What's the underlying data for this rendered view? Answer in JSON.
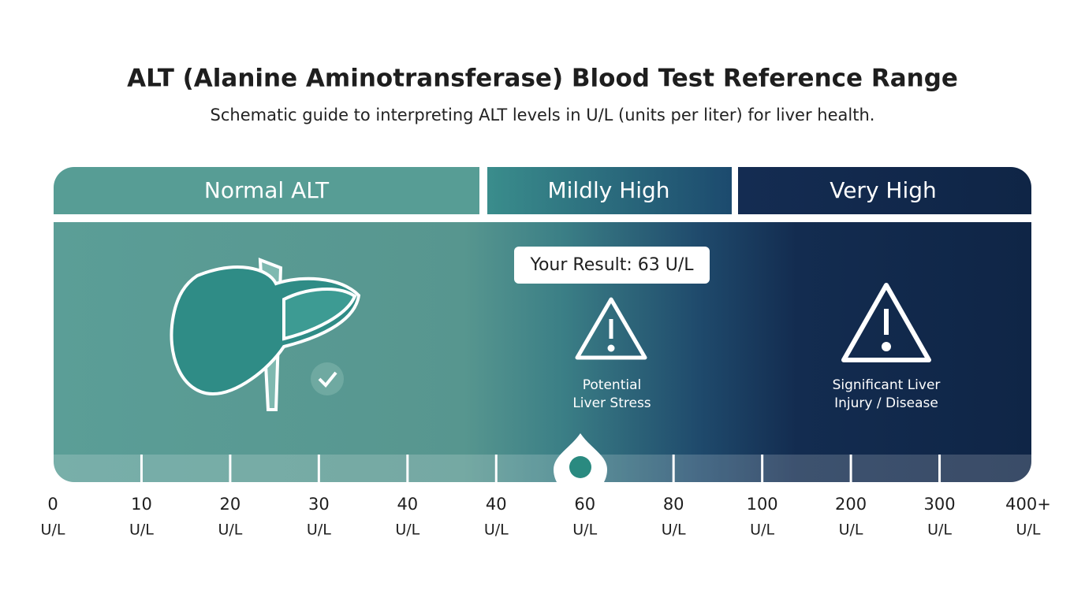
{
  "header": {
    "title": "ALT (Alanine Aminotransferase) Blood Test Reference Range",
    "subtitle": "Schematic guide to interpreting ALT levels in U/L (units per liter) for liver health."
  },
  "zones": [
    {
      "name": "Normal ALT"
    },
    {
      "name": "Mildly High",
      "note": "Potential\nLiver Stress"
    },
    {
      "name": "Very High",
      "note": "Significant Liver\nInjury / Disease"
    }
  ],
  "result": {
    "label": "Your Result: 63 U/L"
  },
  "scale": {
    "ticks": [
      {
        "value": "0",
        "unit": "U/L"
      },
      {
        "value": "10",
        "unit": "U/L"
      },
      {
        "value": "20",
        "unit": "U/L"
      },
      {
        "value": "30",
        "unit": "U/L"
      },
      {
        "value": "40",
        "unit": "U/L"
      },
      {
        "value": "40",
        "unit": "U/L"
      },
      {
        "value": "60",
        "unit": "U/L"
      },
      {
        "value": "80",
        "unit": "U/L"
      },
      {
        "value": "100",
        "unit": "U/L"
      },
      {
        "value": "200",
        "unit": "U/L"
      },
      {
        "value": "300",
        "unit": "U/L"
      },
      {
        "value": "400+",
        "unit": "U/L"
      }
    ]
  }
}
